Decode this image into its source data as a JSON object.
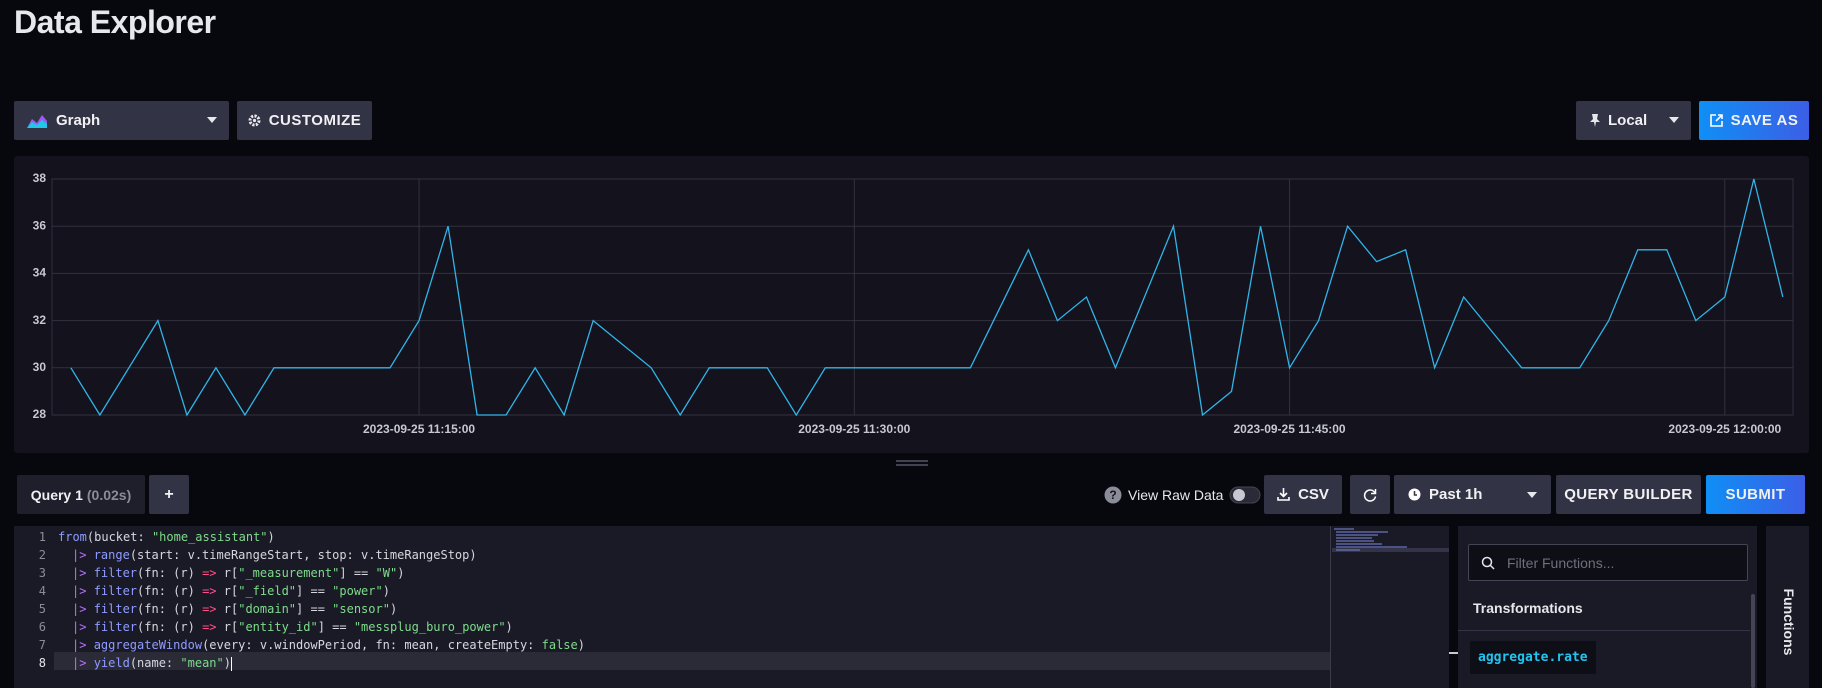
{
  "header": {
    "title": "Data Explorer"
  },
  "toolbar": {
    "visualization": "Graph",
    "customize": "CUSTOMIZE",
    "timezone": "Local",
    "save_as": "SAVE AS"
  },
  "chart_data": {
    "type": "line",
    "x": [
      "2023-09-25 11:03:00",
      "2023-09-25 11:04:00",
      "2023-09-25 11:05:00",
      "2023-09-25 11:06:00",
      "2023-09-25 11:07:00",
      "2023-09-25 11:08:00",
      "2023-09-25 11:09:00",
      "2023-09-25 11:10:00",
      "2023-09-25 11:11:00",
      "2023-09-25 11:12:00",
      "2023-09-25 11:13:00",
      "2023-09-25 11:14:00",
      "2023-09-25 11:15:00",
      "2023-09-25 11:16:00",
      "2023-09-25 11:17:00",
      "2023-09-25 11:18:00",
      "2023-09-25 11:19:00",
      "2023-09-25 11:20:00",
      "2023-09-25 11:21:00",
      "2023-09-25 11:22:00",
      "2023-09-25 11:23:00",
      "2023-09-25 11:24:00",
      "2023-09-25 11:25:00",
      "2023-09-25 11:26:00",
      "2023-09-25 11:27:00",
      "2023-09-25 11:28:00",
      "2023-09-25 11:29:00",
      "2023-09-25 11:30:00",
      "2023-09-25 11:31:00",
      "2023-09-25 11:32:00",
      "2023-09-25 11:33:00",
      "2023-09-25 11:34:00",
      "2023-09-25 11:35:00",
      "2023-09-25 11:36:00",
      "2023-09-25 11:37:00",
      "2023-09-25 11:38:00",
      "2023-09-25 11:39:00",
      "2023-09-25 11:40:00",
      "2023-09-25 11:41:00",
      "2023-09-25 11:42:00",
      "2023-09-25 11:43:00",
      "2023-09-25 11:44:00",
      "2023-09-25 11:45:00",
      "2023-09-25 11:46:00",
      "2023-09-25 11:47:00",
      "2023-09-25 11:48:00",
      "2023-09-25 11:49:00",
      "2023-09-25 11:50:00",
      "2023-09-25 11:51:00",
      "2023-09-25 11:52:00",
      "2023-09-25 11:53:00",
      "2023-09-25 11:54:00",
      "2023-09-25 11:55:00",
      "2023-09-25 11:56:00",
      "2023-09-25 11:57:00",
      "2023-09-25 11:58:00",
      "2023-09-25 11:59:00",
      "2023-09-25 12:00:00",
      "2023-09-25 12:01:00",
      "2023-09-25 12:02:00"
    ],
    "series": [
      {
        "color": "#31b4e8",
        "values": [
          30,
          28,
          30,
          32,
          28,
          30,
          28,
          30,
          30,
          30,
          30,
          30,
          32,
          36,
          28,
          28,
          30,
          28,
          32,
          31,
          30,
          28,
          30,
          30,
          30,
          28,
          30,
          30,
          30,
          30,
          30,
          30,
          32.5,
          35,
          32,
          33,
          30,
          33,
          36,
          28,
          29,
          36,
          30,
          32,
          36,
          34.5,
          35,
          30,
          33,
          31.5,
          30,
          30,
          30,
          32,
          35,
          35,
          32,
          33,
          38,
          33
        ]
      }
    ],
    "xlim": [
      "2023-09-25 11:02:21",
      "2023-09-25 12:02:21"
    ],
    "xticks": [
      "2023-09-25 11:15:00",
      "2023-09-25 11:30:00",
      "2023-09-25 11:45:00",
      "2023-09-25 12:00:00"
    ],
    "ylim": [
      28,
      38
    ],
    "yticks": [
      28,
      30,
      32,
      34,
      36,
      38
    ],
    "grid": true
  },
  "query_bar": {
    "tab": "Query 1",
    "tab_timing": "(0.02s)",
    "add": "+",
    "view_raw_data": "View Raw Data",
    "csv": "CSV",
    "time_range": "Past 1h",
    "query_builder": "QUERY BUILDER",
    "submit": "SUBMIT"
  },
  "editor": {
    "line_numbers": [
      1,
      2,
      3,
      4,
      5,
      6,
      7,
      8
    ],
    "lines": [
      [
        "from",
        "(bucket: ",
        "\"home_assistant\"",
        ")"
      ],
      [
        "|> ",
        "range",
        "(start: v.timeRangeStart, stop: v.timeRangeStop)"
      ],
      [
        "|> ",
        "filter",
        "(fn: (r) ",
        "=>",
        " r[",
        "\"_measurement\"",
        "] == ",
        "\"W\"",
        ")"
      ],
      [
        "|> ",
        "filter",
        "(fn: (r) ",
        "=>",
        " r[",
        "\"_field\"",
        "] == ",
        "\"power\"",
        ")"
      ],
      [
        "|> ",
        "filter",
        "(fn: (r) ",
        "=>",
        " r[",
        "\"domain\"",
        "] == ",
        "\"sensor\"",
        ")"
      ],
      [
        "|> ",
        "filter",
        "(fn: (r) ",
        "=>",
        " r[",
        "\"entity_id\"",
        "] == ",
        "\"messplug_buro_power\"",
        ")"
      ],
      [
        "|> ",
        "aggregateWindow",
        "(every: v.windowPeriod, fn: mean, createEmpty: ",
        "false",
        ")"
      ],
      [
        "|> ",
        "yield",
        "(name: ",
        "\"mean\"",
        ")"
      ]
    ]
  },
  "functions": {
    "filter_placeholder": "Filter Functions...",
    "section": "Transformations",
    "items": [
      "aggregate.rate"
    ],
    "tab": "Functions"
  }
}
